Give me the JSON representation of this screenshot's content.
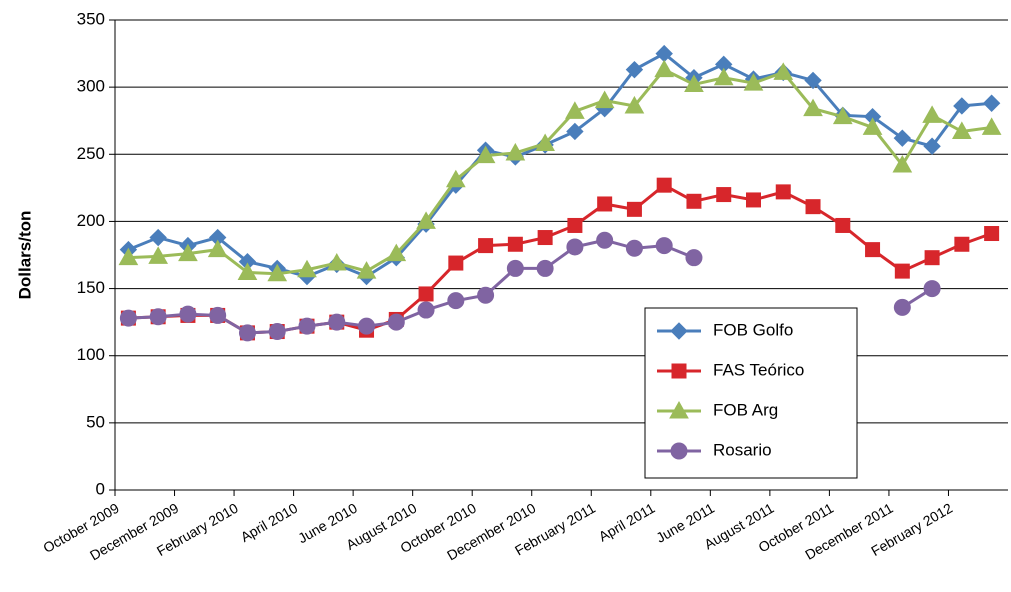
{
  "chart_data": {
    "type": "line",
    "y_label": "Dollars/ton",
    "categories": [
      "October 2009",
      null,
      "December 2009",
      null,
      "February 2010",
      null,
      "April 2010",
      null,
      "June 2010",
      null,
      "August 2010",
      null,
      "October 2010",
      null,
      "December 2010",
      null,
      "February 2011",
      null,
      "April 2011",
      null,
      "June 2011",
      null,
      "August 2011",
      null,
      "October 2011",
      null,
      "December 2011",
      null,
      "February 2012",
      null
    ],
    "series": [
      {
        "name": "FOB Golfo",
        "color": "#4a7ebb",
        "marker": "diamond",
        "values": [
          179,
          188,
          182,
          188,
          170,
          165,
          159,
          168,
          159,
          173,
          198,
          227,
          253,
          248,
          257,
          267,
          284,
          313,
          325,
          307,
          317,
          306,
          311,
          305,
          279,
          278,
          262,
          256,
          286,
          288
        ]
      },
      {
        "name": "FAS Teórico",
        "color": "#d7262b",
        "marker": "square",
        "values": [
          128,
          129,
          130,
          130,
          117,
          118,
          122,
          125,
          119,
          127,
          146,
          169,
          182,
          183,
          188,
          197,
          213,
          209,
          227,
          215,
          220,
          216,
          222,
          211,
          197,
          179,
          163,
          173,
          183,
          191
        ]
      },
      {
        "name": "FOB Arg",
        "color": "#9bbb59",
        "marker": "triangle",
        "values": [
          173,
          174,
          176,
          179,
          162,
          161,
          164,
          169,
          163,
          176,
          200,
          231,
          249,
          251,
          258,
          282,
          290,
          286,
          313,
          302,
          307,
          303,
          311,
          284,
          278,
          270,
          242,
          279,
          267,
          270
        ]
      },
      {
        "name": "Rosario",
        "color": "#8064a2",
        "marker": "circle",
        "values": [
          128,
          129,
          131,
          130,
          117,
          118,
          122,
          125,
          122,
          125,
          134,
          141,
          145,
          165,
          165,
          181,
          186,
          180,
          182,
          173,
          null,
          null,
          null,
          null,
          null,
          null,
          136,
          150,
          null,
          null
        ]
      }
    ],
    "ylim": [
      0,
      350
    ],
    "yticks": [
      0,
      50,
      100,
      150,
      200,
      250,
      300,
      350
    ],
    "grid": true,
    "legend": "lower right"
  }
}
